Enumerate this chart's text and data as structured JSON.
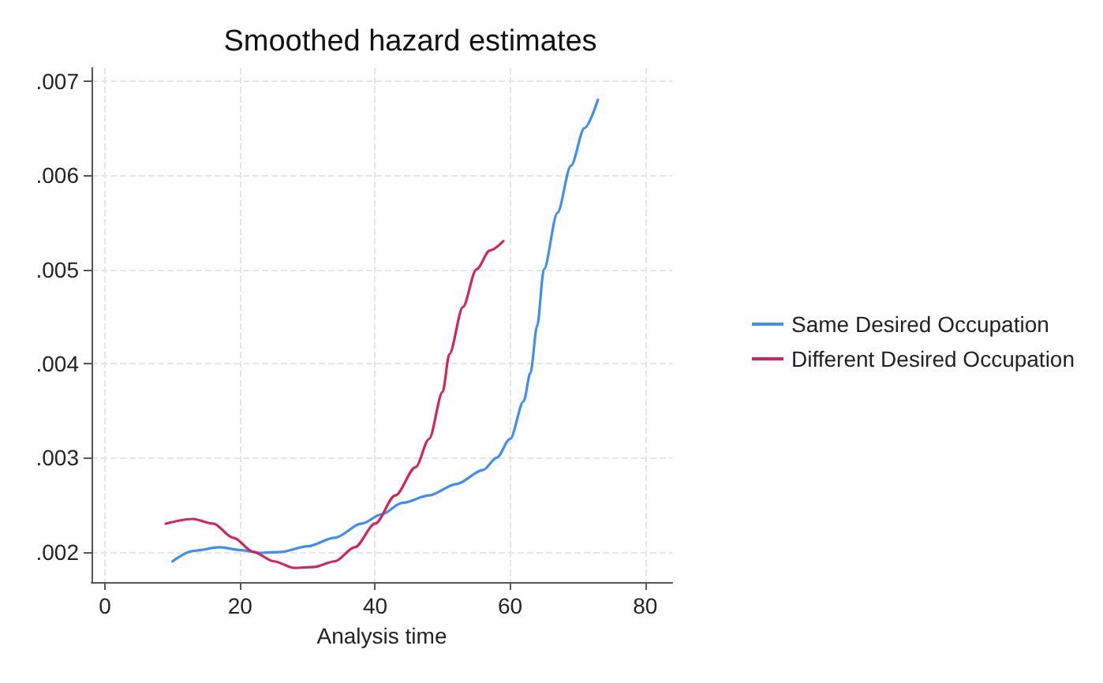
{
  "chart_data": {
    "type": "line",
    "title": "Smoothed hazard estimates",
    "xlabel": "Analysis time",
    "xlim": [
      -2,
      84
    ],
    "xticks": [
      0,
      20,
      40,
      60,
      80
    ],
    "ylim": [
      0.00168,
      0.00714
    ],
    "yticks": [
      {
        "value": 0.002,
        "label": ".002"
      },
      {
        "value": 0.003,
        "label": ".003"
      },
      {
        "value": 0.004,
        "label": ".004"
      },
      {
        "value": 0.005,
        "label": ".005"
      },
      {
        "value": 0.006,
        "label": ".006"
      },
      {
        "value": 0.007,
        "label": ".007"
      }
    ],
    "grid": true,
    "legend": "right",
    "marker": "none",
    "line_style": "solid",
    "series": [
      {
        "name": "Same Desired Occupation",
        "color": "#3d8ef5",
        "x": [
          10,
          13,
          17,
          20,
          23,
          26,
          30,
          34,
          38,
          41,
          44,
          48,
          52,
          56,
          58,
          60,
          62,
          63,
          64,
          65,
          67,
          69,
          71,
          73
        ],
        "values": [
          0.0019,
          0.00201,
          0.00205,
          0.00202,
          0.00199,
          0.002,
          0.00206,
          0.00215,
          0.0023,
          0.0024,
          0.00252,
          0.0026,
          0.00272,
          0.00287,
          0.003,
          0.0032,
          0.0036,
          0.0039,
          0.0044,
          0.005,
          0.0056,
          0.0061,
          0.0065,
          0.0068
        ]
      },
      {
        "name": "Different Desired Occupation",
        "color": "#d6245b",
        "x": [
          9,
          13,
          16,
          19,
          22,
          25,
          28,
          31,
          34,
          37,
          40,
          43,
          46,
          48,
          50,
          51,
          53,
          55,
          57,
          59
        ],
        "values": [
          0.0023,
          0.00235,
          0.0023,
          0.00215,
          0.002,
          0.0019,
          0.00183,
          0.00184,
          0.0019,
          0.00205,
          0.0023,
          0.0026,
          0.0029,
          0.0032,
          0.0037,
          0.0041,
          0.0046,
          0.005,
          0.0052,
          0.0053
        ]
      }
    ]
  }
}
